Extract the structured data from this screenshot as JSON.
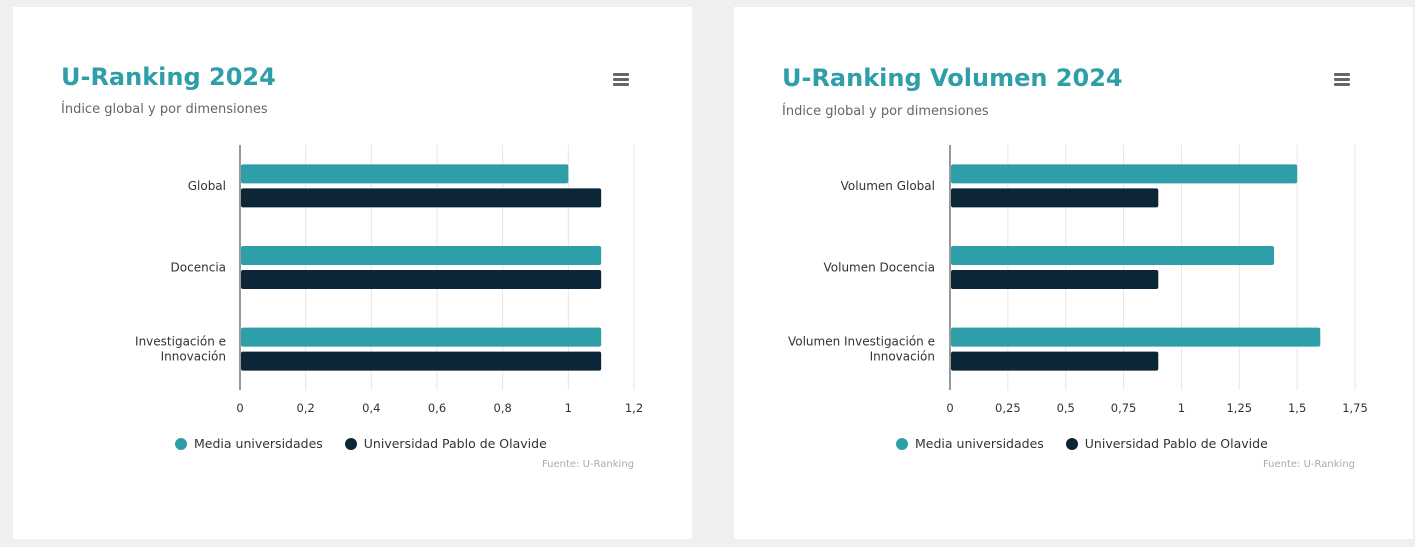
{
  "colors": {
    "series_1": "#2e9ea8",
    "series_2": "#0c2638",
    "accent": "#2e9ea8"
  },
  "icons": {
    "menu": "hamburger-menu-icon"
  },
  "legend": {
    "series_1": "Media universidades",
    "series_2": "Universidad Pablo de Olavide"
  },
  "credits": "Fuente: U-Ranking",
  "chart_data": [
    {
      "type": "bar",
      "orientation": "horizontal",
      "title": "U-Ranking 2024",
      "subtitle": "Índice global y por dimensiones",
      "categories": [
        "Global",
        "Docencia",
        "Investigación e Innovación"
      ],
      "series": [
        {
          "name": "Media universidades",
          "values": [
            1,
            1.1,
            1.1
          ]
        },
        {
          "name": "Universidad Pablo de Olavide",
          "values": [
            1.1,
            1.1,
            1.1
          ]
        }
      ],
      "xlim": [
        0,
        1.2
      ],
      "ticks": [
        "0",
        "0,2",
        "0,4",
        "0,6",
        "0,8",
        "1",
        "1,2"
      ],
      "tick_values": [
        0,
        0.2,
        0.4,
        0.6,
        0.8,
        1,
        1.2
      ],
      "grid": true,
      "legend_position": "bottom",
      "credits": "Fuente: U-Ranking"
    },
    {
      "type": "bar",
      "orientation": "horizontal",
      "title": "U-Ranking Volumen 2024",
      "subtitle": "Índice global y por dimensiones",
      "categories": [
        "Volumen Global",
        "Volumen Docencia",
        "Volumen Investigación e Innovación"
      ],
      "series": [
        {
          "name": "Media universidades",
          "values": [
            1.5,
            1.4,
            1.6
          ]
        },
        {
          "name": "Universidad Pablo de Olavide",
          "values": [
            0.9,
            0.9,
            0.9
          ]
        }
      ],
      "xlim": [
        0,
        1.75
      ],
      "ticks": [
        "0",
        "0,25",
        "0,5",
        "0,75",
        "1",
        "1,25",
        "1,5",
        "1,75"
      ],
      "tick_values": [
        0,
        0.25,
        0.5,
        0.75,
        1,
        1.25,
        1.5,
        1.75
      ],
      "grid": true,
      "legend_position": "bottom",
      "credits": "Fuente: U-Ranking"
    }
  ]
}
